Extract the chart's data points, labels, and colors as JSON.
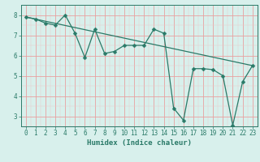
{
  "xlabel": "Humidex (Indice chaleur)",
  "x_data": [
    0,
    1,
    2,
    3,
    4,
    5,
    6,
    7,
    8,
    9,
    10,
    11,
    12,
    13,
    14,
    15,
    16,
    17,
    18,
    19,
    20,
    21,
    22,
    23
  ],
  "y_data": [
    7.9,
    7.8,
    7.6,
    7.5,
    8.0,
    7.1,
    5.9,
    7.3,
    6.1,
    6.2,
    6.5,
    6.5,
    6.5,
    7.3,
    7.1,
    3.4,
    2.8,
    5.35,
    5.35,
    5.3,
    5.0,
    2.55,
    4.7,
    5.5
  ],
  "trend_x": [
    0,
    23
  ],
  "trend_y": [
    7.9,
    5.5
  ],
  "line_color": "#2a7a68",
  "bg_color": "#d8f0ec",
  "grid_major_color": "#e8a0a0",
  "grid_minor_color": "#ecc8c8",
  "ylim": [
    2.5,
    8.5
  ],
  "xlim": [
    -0.5,
    23.5
  ],
  "yticks": [
    3,
    4,
    5,
    6,
    7,
    8
  ],
  "xticks": [
    0,
    1,
    2,
    3,
    4,
    5,
    6,
    7,
    8,
    9,
    10,
    11,
    12,
    13,
    14,
    15,
    16,
    17,
    18,
    19,
    20,
    21,
    22,
    23
  ],
  "markersize": 2.5,
  "linewidth": 0.9
}
